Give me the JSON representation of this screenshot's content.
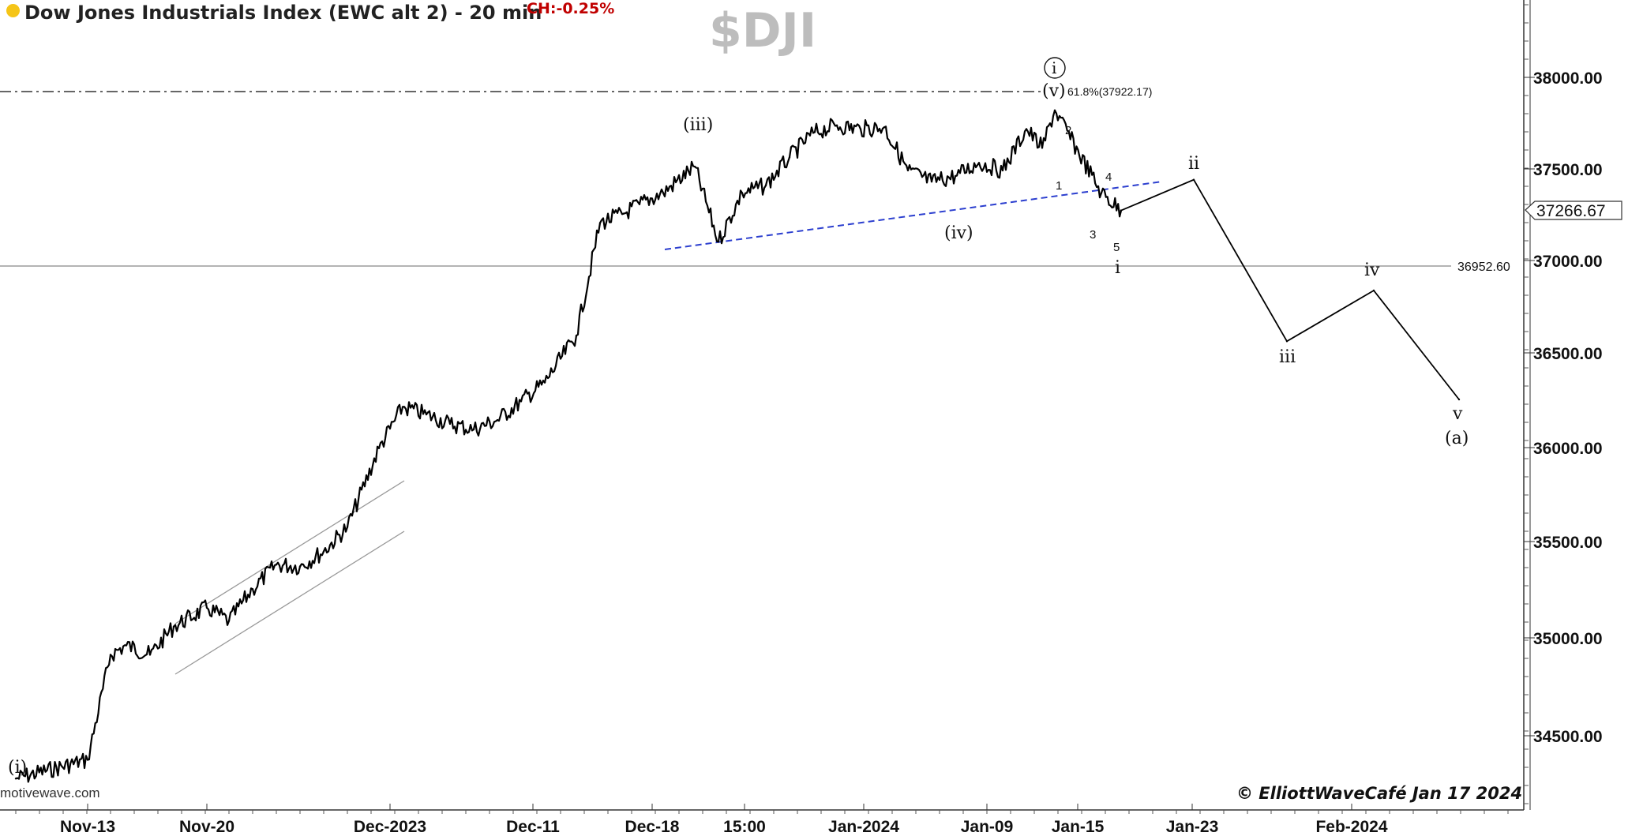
{
  "header": {
    "title": "Dow Jones Industrials Index (EWC alt 2) - 20 min",
    "change": "CH:-0.25%",
    "symbol": "$DJI"
  },
  "footer": {
    "copyright": "© ElliottWaveCafé Jan 17 2024",
    "watermark": "motivewave.com"
  },
  "chart_data": {
    "type": "line",
    "title": "Dow Jones Industrials Index (EWC alt 2) - 20 min",
    "x_ticks": [
      "Nov-13",
      "Nov-20",
      "Dec-2023",
      "Dec-11",
      "Dec-18",
      "15:00",
      "Jan-2024",
      "Jan-09",
      "Jan-15",
      "Jan-23",
      "Feb-2024"
    ],
    "y_ticks": [
      "34500.00",
      "35000.00",
      "35500.00",
      "36000.00",
      "36500.00",
      "37000.00",
      "37500.00",
      "38000.00"
    ],
    "ylim": [
      34175,
      38395
    ],
    "current_price": "37266.67",
    "horizontal_level": {
      "label": "36952.60",
      "value": 36952.6
    },
    "fib_level": {
      "label": "61.8%(37922.17)",
      "value": 37922.17
    },
    "price_series": {
      "name": "$DJI",
      "x": [
        "Nov-10",
        "Nov-13",
        "Nov-14",
        "Nov-15",
        "Nov-16",
        "Nov-17",
        "Nov-20",
        "Nov-21",
        "Nov-22",
        "Nov-24",
        "Nov-27",
        "Nov-28",
        "Nov-29",
        "Nov-30",
        "Dec-01",
        "Dec-04",
        "Dec-05",
        "Dec-06",
        "Dec-07",
        "Dec-08",
        "Dec-11",
        "Dec-12",
        "Dec-13",
        "Dec-14",
        "Dec-15",
        "Dec-18",
        "Dec-19",
        "Dec-20",
        "Dec-21",
        "Dec-22",
        "Dec-26",
        "Dec-27",
        "Dec-28",
        "Dec-29",
        "Jan-02",
        "Jan-03",
        "Jan-04",
        "Jan-05",
        "Jan-08",
        "Jan-09",
        "Jan-10",
        "Jan-11",
        "Jan-12",
        "Jan-16",
        "Jan-17"
      ],
      "y": [
        34240,
        34340,
        34900,
        34950,
        34900,
        35050,
        35150,
        35080,
        35250,
        35380,
        35370,
        35450,
        35580,
        36000,
        36220,
        36180,
        36130,
        36100,
        36150,
        36250,
        36350,
        36600,
        37200,
        37250,
        37300,
        37360,
        37500,
        37100,
        37360,
        37400,
        37550,
        37680,
        37720,
        37700,
        37710,
        37480,
        37420,
        37450,
        37520,
        37480,
        37700,
        37600,
        37800,
        37360,
        37266.67
      ]
    },
    "projection": {
      "x": [
        "Jan-17",
        "Jan-23",
        "Jan-30",
        "Feb-03",
        "Feb-09"
      ],
      "y": [
        37266.67,
        37430,
        36570,
        36840,
        36260
      ]
    },
    "wave_labels": [
      "(i)",
      "(iii)",
      "(iv)",
      "(v)",
      "i",
      "1",
      "2",
      "3",
      "4",
      "5",
      "i",
      "ii",
      "iii",
      "iv",
      "v",
      "(a)"
    ]
  }
}
